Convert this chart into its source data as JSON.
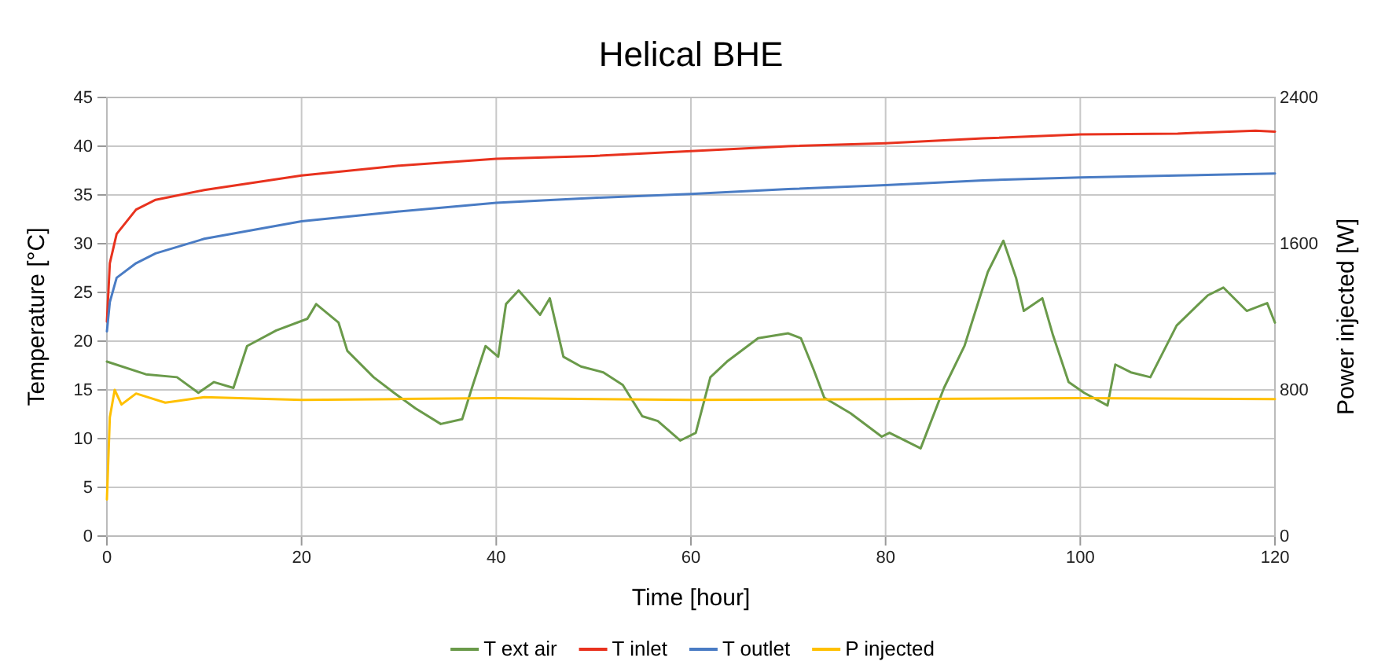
{
  "chart_data": {
    "type": "line",
    "title": "Helical BHE",
    "xlabel": "Time [hour]",
    "ylabel": "Temperature [°C]",
    "y2label": "Power injected [W]",
    "xlim": [
      0,
      120
    ],
    "xticks": [
      0,
      20,
      40,
      60,
      80,
      100,
      120
    ],
    "ylim": [
      0,
      45
    ],
    "yticks": [
      0,
      5,
      10,
      15,
      20,
      25,
      30,
      35,
      40,
      45
    ],
    "y2lim": [
      0,
      2400
    ],
    "y2ticks": [
      0,
      800,
      1600,
      2400
    ],
    "grid": true,
    "legend": "bottom",
    "marker": "none",
    "line_style": "solid",
    "series": [
      {
        "name": "T ext air",
        "color": "#6a9a4a",
        "x": [
          0,
          4,
          7.2,
          9.4,
          11,
          13,
          14.4,
          17.4,
          20.6,
          21.5,
          23.8,
          24.7,
          27.4,
          29.5,
          31.7,
          34.3,
          36.5,
          37.5,
          38.9,
          40.2,
          41,
          42.3,
          44.5,
          45.5,
          46.9,
          48.7,
          51,
          53,
          55,
          56.6,
          58.9,
          60.5,
          62,
          63.7,
          66.9,
          70,
          71.3,
          72.6,
          73.7,
          76.4,
          79.6,
          80.4,
          83.6,
          86,
          88.1,
          90.5,
          92.1,
          93.4,
          94.2,
          96.1,
          97.2,
          98.8,
          100.4,
          102.8,
          103.6,
          105.2,
          107.2,
          109.9,
          113.1,
          114.7,
          117.1,
          119.2,
          120
        ],
        "values": [
          17.9,
          16.6,
          16.3,
          14.7,
          15.8,
          15.2,
          19.5,
          21.1,
          22.3,
          23.8,
          21.9,
          19,
          16.3,
          14.7,
          13.1,
          11.5,
          12,
          15.2,
          19.5,
          18.4,
          23.8,
          25.2,
          22.7,
          24.4,
          18.4,
          17.4,
          16.8,
          15.5,
          12.3,
          11.8,
          9.8,
          10.6,
          16.3,
          17.9,
          20.3,
          20.8,
          20.3,
          17.1,
          14.2,
          12.6,
          10.2,
          10.6,
          9,
          15.2,
          19.5,
          27.1,
          30.3,
          26.5,
          23.1,
          24.4,
          20.6,
          15.8,
          14.7,
          13.4,
          17.6,
          16.8,
          16.3,
          21.6,
          24.7,
          25.5,
          23.1,
          23.9,
          21.9
        ]
      },
      {
        "name": "T inlet",
        "color": "#e8321e",
        "x": [
          0,
          0.3,
          1,
          3,
          5,
          10,
          20,
          30,
          40,
          50,
          60,
          70,
          80,
          90,
          100,
          110,
          118,
          120
        ],
        "values": [
          22,
          28,
          31,
          33.5,
          34.5,
          35.5,
          37,
          38,
          38.7,
          39,
          39.5,
          40,
          40.3,
          40.8,
          41.2,
          41.3,
          41.6,
          41.5
        ]
      },
      {
        "name": "T outlet",
        "color": "#4a7cc4",
        "x": [
          0,
          0.3,
          1,
          3,
          5,
          10,
          20,
          30,
          40,
          50,
          60,
          70,
          80,
          90,
          100,
          110,
          120
        ],
        "values": [
          21,
          24,
          26.5,
          28,
          29,
          30.5,
          32.3,
          33.3,
          34.2,
          34.7,
          35.1,
          35.6,
          36,
          36.5,
          36.8,
          37,
          37.2
        ]
      },
      {
        "name": "P injected",
        "color": "#ffc000",
        "axis": "y2",
        "x": [
          0,
          0.3,
          0.8,
          1.5,
          3,
          6,
          10,
          20,
          30,
          40,
          60,
          80,
          100,
          120
        ],
        "values": [
          200,
          650,
          800,
          720,
          780,
          730,
          760,
          745,
          750,
          755,
          745,
          750,
          755,
          750
        ]
      }
    ]
  }
}
